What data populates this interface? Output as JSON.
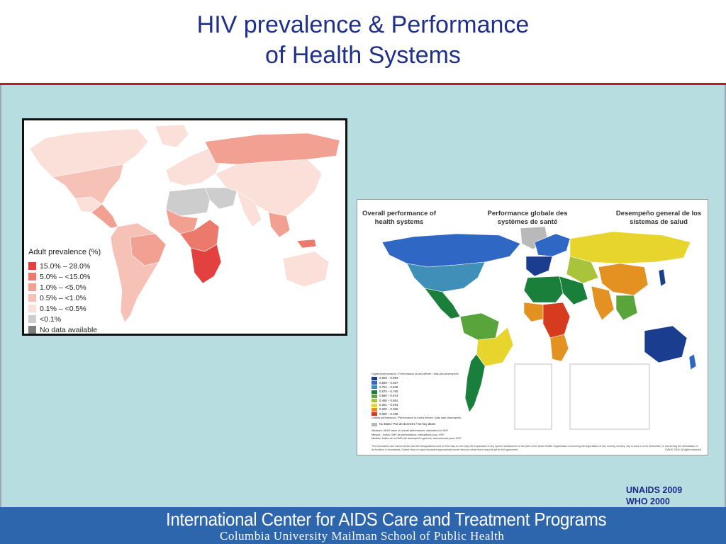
{
  "slide": {
    "title_line1": "HIV prevalence & Performance",
    "title_line2": "of Health Systems"
  },
  "hiv_map": {
    "legend_title": "Adult prevalence (%)",
    "legend": [
      {
        "label": "15.0% – 28.0%",
        "color": "#e3413f"
      },
      {
        "label": "5.0% – <15.0%",
        "color": "#ec7a6c"
      },
      {
        "label": "1.0% – <5.0%",
        "color": "#f2a091"
      },
      {
        "label": "0.5% – <1.0%",
        "color": "#f6c2b8"
      },
      {
        "label": "0.1% – <0.5%",
        "color": "#fbe0d9"
      },
      {
        "label": "<0.1%",
        "color": "#cdcdcd"
      },
      {
        "label": "No data available",
        "color": "#7f7f7f"
      }
    ]
  },
  "who_map": {
    "heading_en": "Overall performance of health systems",
    "heading_fr": "Performance globale des systèmes de santé",
    "heading_es": "Desempeño general de los sistemas de salud",
    "legend_top": "Highest performance / Performance la plus élevée / Más alto desempeño",
    "legend": [
      {
        "label": "0.928 – 0.994",
        "color": "#1b3d8f"
      },
      {
        "label": "0.849 – 0.927",
        "color": "#2f67c5"
      },
      {
        "label": "0.761 – 0.848",
        "color": "#3f8fb8"
      },
      {
        "label": "0.675 – 0.760",
        "color": "#1a7f3a"
      },
      {
        "label": "0.590 – 0.674",
        "color": "#5aa43c"
      },
      {
        "label": "0.495 – 0.591",
        "color": "#a9c33a"
      },
      {
        "label": "0.361 – 0.494",
        "color": "#e7d52e"
      },
      {
        "label": "0.200 – 0.360",
        "color": "#e39222"
      },
      {
        "label": "0.000 – 0.199",
        "color": "#d63b1e"
      }
    ],
    "legend_bottom": "Lowest performance / Performance la moins élevée / Más bajo desempeño",
    "no_data": {
      "label": "No Data / Pas de données / No hay datos",
      "color": "#b9b9b9"
    },
    "notes": [
      "Measure:  WHO index of overall performance, estimates for 1997",
      "Mesure :  Indice OMS de performance, estimations pour 1997",
      "Medida:   Índice de la OMS del desempeño general, estimaciones para 1997"
    ],
    "footer": "The boundaries and names shown and the designations used on this map do not imply the expression of any opinion whatsoever on the part of the World Health Organization concerning the legal status of any country, territory, city or area or of its authorities, or concerning the delimitation of its frontiers or boundaries. Dotted lines on maps represent approximate border lines for which there may not yet be full agreement.",
    "copyright": "©WHO 2000. All rights reserved"
  },
  "sources": [
    "UNAIDS 2009",
    "WHO 2000"
  ],
  "footer": {
    "line1": "International Center for AIDS Care and Treatment Programs",
    "line2": "Columbia University Mailman School of Public Health"
  }
}
